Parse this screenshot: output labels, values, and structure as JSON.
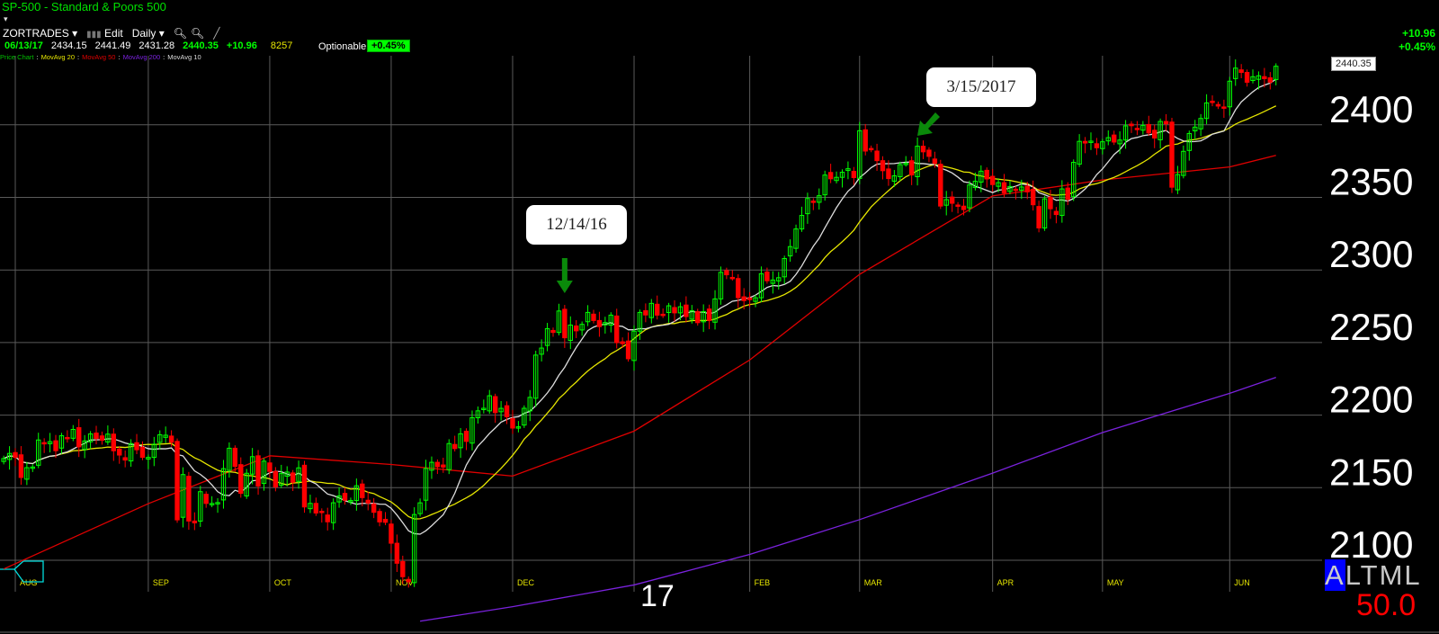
{
  "header": {
    "title": "SP-500  -  Standard & Poors 500",
    "dropdown_caret": "▾",
    "toolbar": {
      "account": "ZORTRADES ▾",
      "edit": "Edit",
      "period": "Daily ▾",
      "zoom_in_icon": "zoom-in",
      "zoom_out_icon": "zoom-out",
      "draw_icon": "pencil"
    },
    "quote": {
      "date": "06/13/17",
      "open": "2434.15",
      "high": "2441.49",
      "low": "2431.28",
      "last": "2440.35",
      "change": "+10.96",
      "volume": "8257"
    },
    "optionable": "Optionable",
    "pct_badge": "+0.45%",
    "legend": [
      {
        "label": "Price Chart",
        "color": "#00c000"
      },
      {
        "label": "MovAvg 20",
        "color": "#e6e600"
      },
      {
        "label": "MovAvg 50",
        "color": "#e00000"
      },
      {
        "label": "MovAvg 200",
        "color": "#7a22dd"
      },
      {
        "label": "MovAvg 10",
        "color": "#dddddd"
      }
    ],
    "right_change": "+10.96",
    "right_pct": "+0.45%"
  },
  "price_tag": "2440.35",
  "bottom": {
    "year_label": "17",
    "altml": [
      "A",
      "L",
      "T",
      "M",
      "L"
    ],
    "value": "50.0"
  },
  "annotations": [
    {
      "text": "12/14/16",
      "date": "2016-12-14"
    },
    {
      "text": "3/15/2017",
      "date": "2017-03-15"
    }
  ],
  "chart_data": {
    "type": "candlestick",
    "ylim": [
      2080,
      2450
    ],
    "y_ticks": [
      "2100",
      "2150",
      "2200",
      "2250",
      "2300",
      "2350",
      "2400"
    ],
    "x_ticks": [
      {
        "label": "AUG",
        "date": "2016-08-01"
      },
      {
        "label": "SEP",
        "date": "2016-09-01"
      },
      {
        "label": "OCT",
        "date": "2016-10-03"
      },
      {
        "label": "NOV",
        "date": "2016-11-01"
      },
      {
        "label": "DEC",
        "date": "2016-12-01"
      },
      {
        "label": "",
        "date": "2017-01-03"
      },
      {
        "label": "FEB",
        "date": "2017-02-01"
      },
      {
        "label": "MAR",
        "date": "2017-03-01"
      },
      {
        "label": "APR",
        "date": "2017-04-03"
      },
      {
        "label": "MAY",
        "date": "2017-05-01"
      },
      {
        "label": "JUN",
        "date": "2017-06-01"
      }
    ],
    "grid": true,
    "colors": {
      "up": "#00ff00",
      "down": "#ff0000",
      "grid": "#5a5a5a",
      "axis_label": "#e6e600"
    },
    "close_by_month": {
      "2016-07": [
        2170.06,
        2173.6
      ],
      "2016-08": [
        2170.84,
        2157.03,
        2163.79,
        2164.25,
        2182.87,
        2180.89,
        2181.74,
        2175.49,
        2185.79,
        2184.05,
        2190.15,
        2178.15,
        2182.22,
        2187.02,
        2183.87,
        2182.64,
        2186.9,
        2175.44,
        2172.47,
        2169.04,
        2180.38,
        2176.12,
        2170.95
      ],
      "2016-09": [
        2170.86,
        2179.98,
        2186.48,
        2186.16,
        2181.3,
        2127.81,
        2159.04,
        2127.02,
        2125.77,
        2147.26,
        2139.16,
        2139.12,
        2139.76,
        2163.12,
        2177.18,
        2164.69,
        2146.1,
        2159.93,
        2171.37,
        2151.13,
        2168.27
      ],
      "2016-10": [
        2161.2,
        2150.49,
        2159.73,
        2160.77,
        2153.74,
        2163.66,
        2136.73,
        2139.18,
        2132.55,
        2132.98,
        2126.5,
        2139.6,
        2144.29,
        2141.34,
        2141.16,
        2151.33,
        2143.16,
        2139.43,
        2133.04,
        2126.41,
        2126.15
      ],
      "2016-11": [
        2111.72,
        2097.94,
        2088.66,
        2085.18,
        2131.52,
        2139.56,
        2163.26,
        2167.48,
        2164.45,
        2164.2,
        2180.39,
        2176.94,
        2187.12,
        2181.9,
        2198.18,
        2202.94,
        2204.72,
        2213.35,
        2201.72,
        2204.66,
        2198.81
      ],
      "2016-12": [
        2191.08,
        2191.95,
        2204.71,
        2212.23,
        2241.35,
        2246.19,
        2259.53,
        2256.96,
        2271.72,
        2253.28,
        2262.03,
        2258.07,
        2262.53,
        2270.76,
        2265.18,
        2260.96,
        2263.79,
        2268.88,
        2249.92,
        2249.26,
        2238.83
      ],
      "2017-01": [
        2257.83,
        2270.75,
        2269.0,
        2276.98,
        2268.9,
        2268.9,
        2275.32,
        2270.44,
        2274.64,
        2267.89,
        2271.89,
        2263.69,
        2271.31,
        2265.2,
        2280.07,
        2298.37,
        2296.68,
        2294.69,
        2280.9,
        2278.87
      ],
      "2017-02": [
        2279.55,
        2280.85,
        2297.42,
        2292.56,
        2293.08,
        2294.67,
        2307.87,
        2316.1,
        2328.25,
        2337.58,
        2349.25,
        2347.22,
        2351.16,
        2365.38,
        2362.82,
        2363.81,
        2367.34,
        2369.75,
        2363.64
      ],
      "2017-03": [
        2395.96,
        2381.92,
        2383.12,
        2375.31,
        2368.39,
        2362.98,
        2364.87,
        2372.6,
        2373.47,
        2365.45,
        2385.26,
        2381.38,
        2378.25,
        2373.47,
        2344.02,
        2348.45,
        2345.96,
        2343.98,
        2341.59,
        2358.57,
        2361.13,
        2368.06,
        2362.72
      ],
      "2017-04": [
        2358.84,
        2360.16,
        2352.95,
        2357.49,
        2355.54,
        2357.16,
        2353.78,
        2344.93,
        2328.95,
        2349.01,
        2342.19,
        2338.17,
        2355.84,
        2348.69,
        2374.15,
        2388.61,
        2387.45,
        2388.77,
        2384.2
      ],
      "2017-05": [
        2388.33,
        2391.17,
        2388.13,
        2389.52,
        2399.29,
        2399.38,
        2396.92,
        2399.63,
        2394.44,
        2390.9,
        2402.32,
        2400.67,
        2357.03,
        2365.72,
        2381.73,
        2394.02,
        2398.42,
        2404.39,
        2415.07,
        2415.82,
        2412.91,
        2411.8
      ],
      "2017-06": [
        2430.06,
        2439.07,
        2436.1,
        2429.33,
        2433.14,
        2433.79,
        2431.77,
        2429.39,
        2440.35
      ]
    },
    "series": [
      {
        "name": "MovAvg 50",
        "color": "#e00000",
        "points": [
          [
            "2016-07-28",
            2094
          ],
          [
            "2016-09-01",
            2139
          ],
          [
            "2016-10-03",
            2172
          ],
          [
            "2016-11-01",
            2166
          ],
          [
            "2016-12-01",
            2158
          ],
          [
            "2017-01-03",
            2189
          ],
          [
            "2017-02-01",
            2238
          ],
          [
            "2017-03-01",
            2297
          ],
          [
            "2017-04-03",
            2351
          ],
          [
            "2017-05-01",
            2362
          ],
          [
            "2017-06-01",
            2371
          ],
          [
            "2017-06-13",
            2379
          ]
        ]
      },
      {
        "name": "MovAvg 200",
        "color": "#7a22dd",
        "points": [
          [
            "2016-11-08",
            2058
          ],
          [
            "2016-12-01",
            2068
          ],
          [
            "2017-01-03",
            2083
          ],
          [
            "2017-02-01",
            2104
          ],
          [
            "2017-03-01",
            2128
          ],
          [
            "2017-04-03",
            2160
          ],
          [
            "2017-05-01",
            2188
          ],
          [
            "2017-06-01",
            2215
          ],
          [
            "2017-06-13",
            2226
          ]
        ]
      },
      {
        "name": "MovAvg 20",
        "color": "#e6e600",
        "computed_from": "close",
        "period": 20
      },
      {
        "name": "MovAvg 10",
        "color": "#dddddd",
        "computed_from": "close",
        "period": 10
      }
    ]
  }
}
